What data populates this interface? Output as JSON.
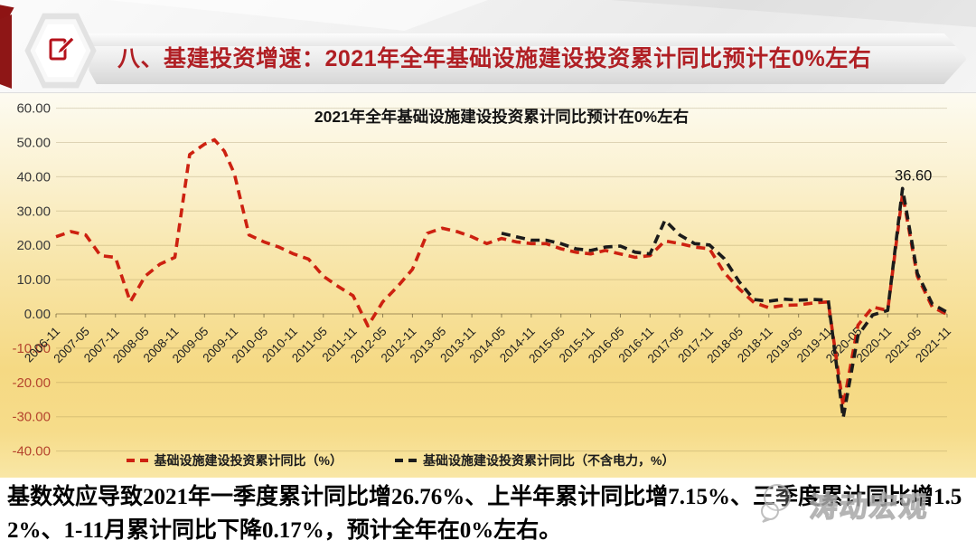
{
  "header": {
    "title": "八、基建投资增速：2021年全年基础设施建设投资累计同比预计在0%左右",
    "accent_color": "#b01f24",
    "icon": "edit-pencil-icon"
  },
  "chart_data": {
    "type": "line",
    "title": "2021年全年基础设施建设投资累计同比预计在0%左右",
    "line_style": "dashed",
    "grid": true,
    "legend_position": "bottom",
    "ylim": [
      -40,
      60
    ],
    "y_tick_labels": [
      "60.00",
      "50.00",
      "40.00",
      "30.00",
      "20.00",
      "10.00",
      "0.00",
      "-10.00",
      "-20.00",
      "-30.00",
      "-40.00"
    ],
    "negative_tick_color": "#b5452e",
    "x_tick_labels": [
      "2006-11",
      "2007-05",
      "2007-11",
      "2008-05",
      "2008-11",
      "2009-05",
      "2009-11",
      "2010-05",
      "2010-11",
      "2011-05",
      "2011-11",
      "2012-05",
      "2012-11",
      "2013-05",
      "2013-11",
      "2014-05",
      "2014-11",
      "2015-05",
      "2015-11",
      "2016-05",
      "2016-11",
      "2017-05",
      "2017-11",
      "2018-05",
      "2018-11",
      "2019-05",
      "2019-11",
      "2020-05",
      "2020-11",
      "2021-05",
      "2021-11"
    ],
    "annotation": {
      "text": "36.60",
      "x": "2021-02",
      "y": 36.6
    },
    "series": [
      {
        "name": "基础设施建设投资累计同比（%）",
        "color": "#cd2110",
        "points": [
          [
            "2006-11",
            22.5
          ],
          [
            "2007-02",
            24
          ],
          [
            "2007-05",
            23
          ],
          [
            "2007-08",
            17
          ],
          [
            "2007-11",
            16.5
          ],
          [
            "2008-02",
            3.5
          ],
          [
            "2008-05",
            11
          ],
          [
            "2008-08",
            14.5
          ],
          [
            "2008-11",
            16.5
          ],
          [
            "2009-02",
            46.5
          ],
          [
            "2009-05",
            49.5
          ],
          [
            "2009-07",
            50.8
          ],
          [
            "2009-09",
            47.5
          ],
          [
            "2009-11",
            41
          ],
          [
            "2010-02",
            23
          ],
          [
            "2010-05",
            21
          ],
          [
            "2010-08",
            19.5
          ],
          [
            "2010-11",
            17.5
          ],
          [
            "2011-02",
            16
          ],
          [
            "2011-05",
            11
          ],
          [
            "2011-08",
            8
          ],
          [
            "2011-11",
            5.3
          ],
          [
            "2012-02",
            -3.5
          ],
          [
            "2012-05",
            3.5
          ],
          [
            "2012-08",
            8
          ],
          [
            "2012-11",
            13
          ],
          [
            "2013-02",
            23.5
          ],
          [
            "2013-05",
            25
          ],
          [
            "2013-08",
            24
          ],
          [
            "2013-11",
            22.5
          ],
          [
            "2014-02",
            20.5
          ],
          [
            "2014-05",
            22
          ],
          [
            "2014-08",
            21
          ],
          [
            "2014-11",
            20.5
          ],
          [
            "2015-02",
            20.5
          ],
          [
            "2015-05",
            19
          ],
          [
            "2015-08",
            18
          ],
          [
            "2015-11",
            17.5
          ],
          [
            "2016-02",
            18.5
          ],
          [
            "2016-05",
            17.5
          ],
          [
            "2016-08",
            16.5
          ],
          [
            "2016-11",
            17
          ],
          [
            "2017-02",
            21.3
          ],
          [
            "2017-05",
            20.5
          ],
          [
            "2017-08",
            19.5
          ],
          [
            "2017-11",
            19
          ],
          [
            "2018-02",
            12
          ],
          [
            "2018-05",
            7.3
          ],
          [
            "2018-08",
            3.3
          ],
          [
            "2018-11",
            1.8
          ],
          [
            "2019-02",
            2.5
          ],
          [
            "2019-05",
            2.6
          ],
          [
            "2019-08",
            3.2
          ],
          [
            "2019-11",
            3.5
          ],
          [
            "2020-02",
            -26.9
          ],
          [
            "2020-05",
            -3.3
          ],
          [
            "2020-08",
            2
          ],
          [
            "2020-11",
            1
          ],
          [
            "2021-02",
            35
          ],
          [
            "2021-05",
            11
          ],
          [
            "2021-08",
            2
          ],
          [
            "2021-11",
            -0.17
          ]
        ]
      },
      {
        "name": "基础设施建设投资累计同比（不含电力，%）",
        "color": "#1b1b1b",
        "points": [
          [
            "2014-05",
            23.5
          ],
          [
            "2014-08",
            22.5
          ],
          [
            "2014-11",
            21.5
          ],
          [
            "2015-02",
            21.5
          ],
          [
            "2015-05",
            20.5
          ],
          [
            "2015-08",
            19
          ],
          [
            "2015-11",
            18.5
          ],
          [
            "2016-02",
            19.5
          ],
          [
            "2016-05",
            19.8
          ],
          [
            "2016-08",
            18
          ],
          [
            "2016-11",
            17.5
          ],
          [
            "2017-02",
            27.3
          ],
          [
            "2017-05",
            23
          ],
          [
            "2017-08",
            20.5
          ],
          [
            "2017-11",
            20.1
          ],
          [
            "2018-02",
            16.1
          ],
          [
            "2018-05",
            9.4
          ],
          [
            "2018-08",
            4.2
          ],
          [
            "2018-11",
            3.7
          ],
          [
            "2019-02",
            4.3
          ],
          [
            "2019-05",
            4
          ],
          [
            "2019-08",
            4.2
          ],
          [
            "2019-11",
            4
          ],
          [
            "2020-02",
            -30.3
          ],
          [
            "2020-05",
            -6.3
          ],
          [
            "2020-08",
            -0.3
          ],
          [
            "2020-11",
            1
          ],
          [
            "2021-02",
            36.6
          ],
          [
            "2021-05",
            11.8
          ],
          [
            "2021-08",
            2.9
          ],
          [
            "2021-11",
            0.5
          ]
        ]
      }
    ]
  },
  "footer": {
    "text": "基数效应导致2021年一季度累计同比增26.76%、上半年累计同比增7.15%、三季度累计同比增1.52%、1-11月累计同比下降0.17%，预计全年在0%左右。"
  },
  "watermark": {
    "text": "涛动宏观",
    "logo": "panda-bubble-logo"
  }
}
